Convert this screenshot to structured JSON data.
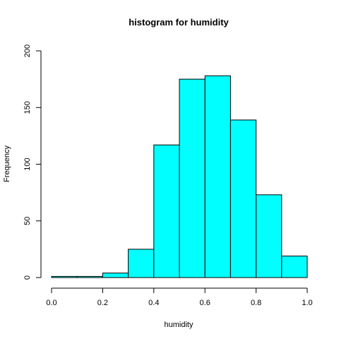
{
  "chart_data": {
    "type": "bar",
    "title": "histogram for humidity",
    "xlabel": "humidity",
    "ylabel": "Frequency",
    "bins": [
      {
        "start": 0.0,
        "end": 0.1,
        "count": 1
      },
      {
        "start": 0.1,
        "end": 0.2,
        "count": 1
      },
      {
        "start": 0.2,
        "end": 0.3,
        "count": 4
      },
      {
        "start": 0.3,
        "end": 0.4,
        "count": 25
      },
      {
        "start": 0.4,
        "end": 0.5,
        "count": 117
      },
      {
        "start": 0.5,
        "end": 0.6,
        "count": 175
      },
      {
        "start": 0.6,
        "end": 0.7,
        "count": 178
      },
      {
        "start": 0.7,
        "end": 0.8,
        "count": 139
      },
      {
        "start": 0.8,
        "end": 0.9,
        "count": 73
      },
      {
        "start": 0.9,
        "end": 1.0,
        "count": 19
      }
    ],
    "xlim": [
      0,
      1
    ],
    "ylim": [
      0,
      200
    ],
    "xticks": [
      "0.0",
      "0.2",
      "0.4",
      "0.6",
      "0.8",
      "1.0"
    ],
    "yticks": [
      "0",
      "50",
      "100",
      "150",
      "200"
    ],
    "bar_color": "#00ffff",
    "border_color": "#000000",
    "grid": false,
    "legend": "none"
  }
}
